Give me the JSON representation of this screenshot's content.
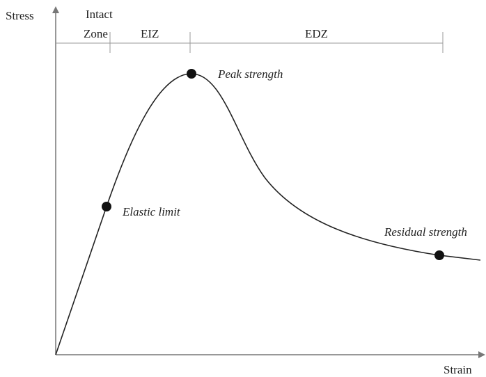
{
  "axes": {
    "y_label": "Stress",
    "x_label": "Strain"
  },
  "zones": [
    {
      "lines": [
        "Intact",
        "Zone"
      ]
    },
    {
      "lines": [
        "EIZ"
      ]
    },
    {
      "lines": [
        "EDZ"
      ]
    }
  ],
  "points": [
    {
      "label": "Elastic limit"
    },
    {
      "label": "Peak strength"
    },
    {
      "label": "Residual strength"
    }
  ]
}
